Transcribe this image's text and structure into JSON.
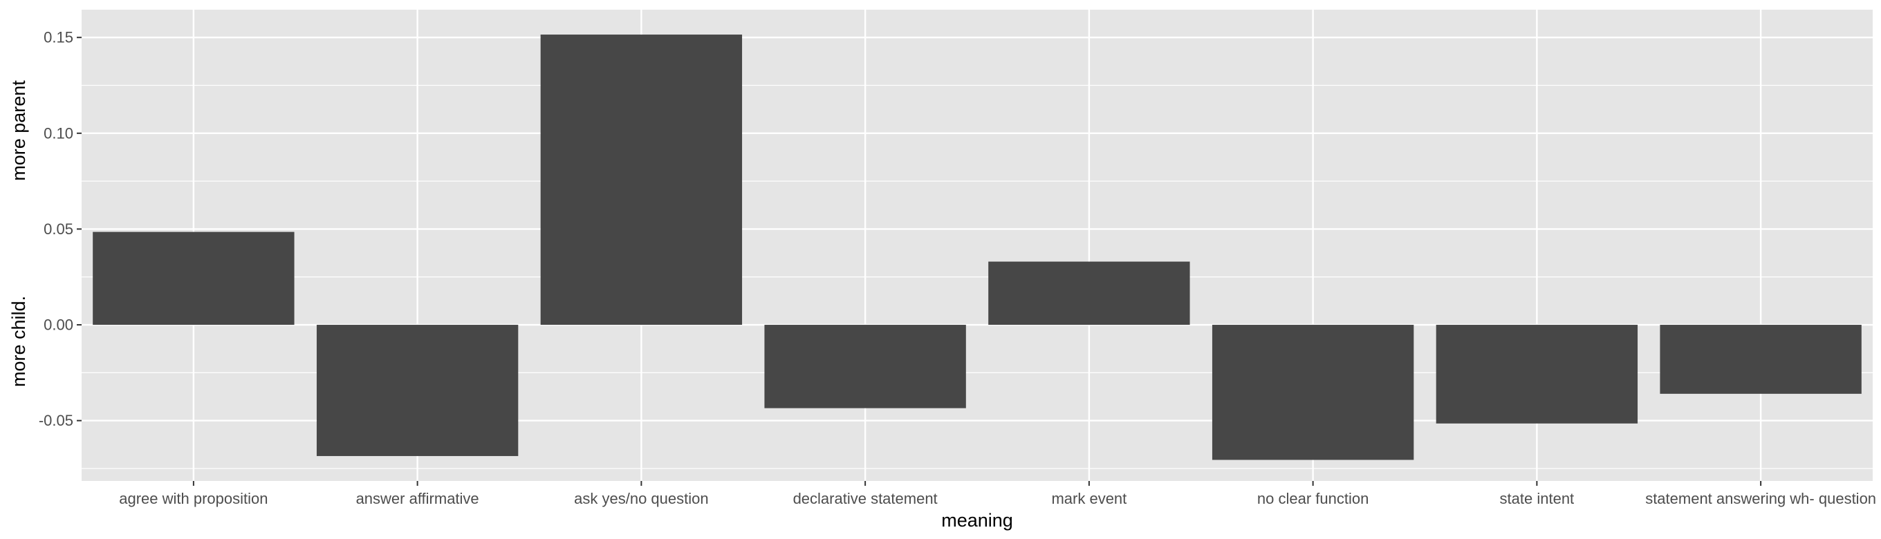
{
  "chart_data": {
    "type": "bar",
    "title": "",
    "xlabel": "meaning",
    "ylabel_upper": "more parent",
    "ylabel_lower": "more child.",
    "categories": [
      "agree with proposition",
      "answer affirmative",
      "ask yes/no question",
      "declarative statement",
      "mark event",
      "no clear function",
      "state intent",
      "statement answering wh- question"
    ],
    "values": [
      0.0485,
      -0.0685,
      0.1515,
      -0.0435,
      0.033,
      -0.0705,
      -0.0515,
      -0.036
    ],
    "ylim": [
      -0.0815,
      0.1645
    ],
    "yticks": [
      -0.05,
      0.0,
      0.05,
      0.1,
      0.15
    ],
    "ytick_labels": [
      "-0.05",
      "0.00",
      "0.05",
      "0.10",
      "0.15"
    ],
    "grid": true,
    "legend": "none",
    "colors": {
      "panel_background": "#e5e5e5",
      "grid_major": "#ffffff",
      "bar_fill": "#474747",
      "tick_text": "#4d4d4d",
      "tick_mark": "#333333",
      "title_text": "#000000"
    }
  }
}
